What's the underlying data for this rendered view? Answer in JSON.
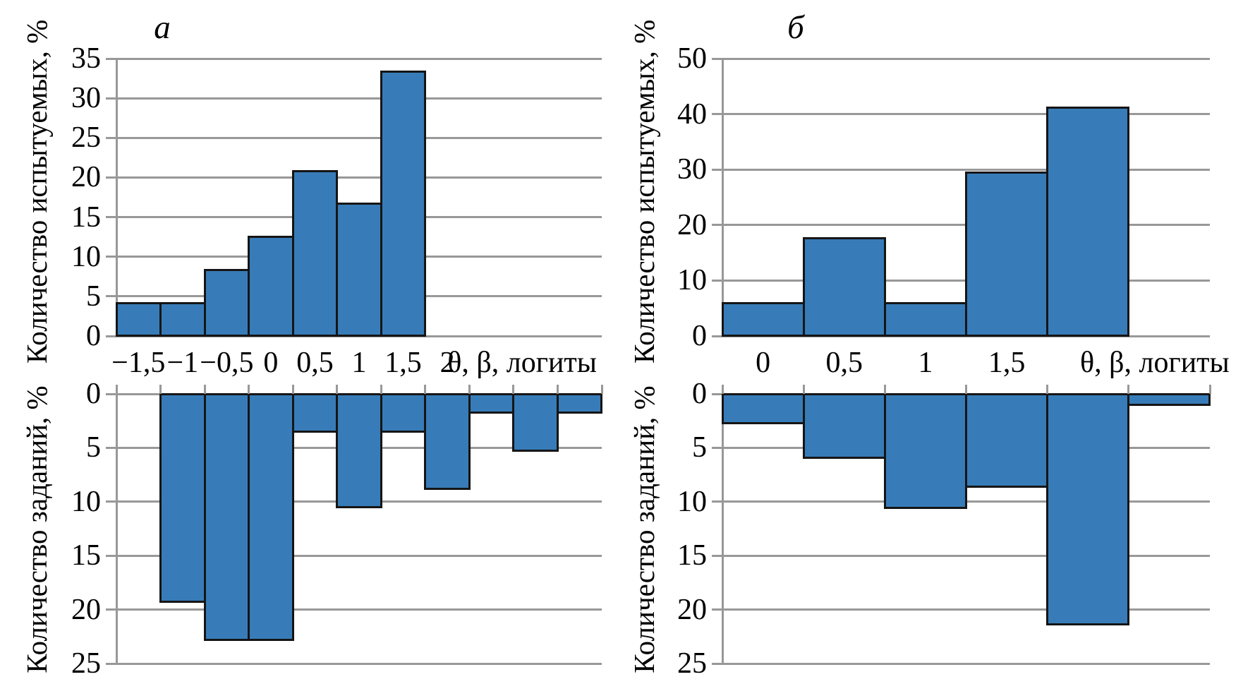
{
  "figure_title": "",
  "chart_data": {
    "type": "bar",
    "description": "Two-panel figure; each panel has an upward histogram of subjects and an inverted (downward) histogram of tasks on a shared logit x-axis",
    "colors": {
      "bar_fill": "#377cb8",
      "bar_edge": "#151515",
      "grid": "#989898",
      "text": "#000000",
      "background": "#ffffff"
    },
    "panels": [
      {
        "panel_label": "а",
        "n_slots": 11,
        "x_tick_labels": [
          "−1,5",
          "−1",
          "−0,5",
          "0",
          "0,5",
          "1",
          "1,5",
          "2"
        ],
        "x_unit_label": "θ, β, логиты",
        "upper": {
          "ylabel": "Количество испытуемых, %",
          "orientation": "up",
          "ylim": [
            0,
            35
          ],
          "ystep": 5,
          "y_tick_labels": [
            "0",
            "5",
            "10",
            "15",
            "20",
            "25",
            "30",
            "35"
          ],
          "start_slot": 0,
          "values": [
            4.17,
            4.17,
            8.33,
            12.5,
            20.83,
            16.67,
            33.33
          ]
        },
        "lower": {
          "ylabel": "Количество заданий, %",
          "orientation": "down",
          "ylim": [
            0,
            25
          ],
          "ystep": 5,
          "y_tick_labels": [
            "0",
            "5",
            "10",
            "15",
            "20",
            "25"
          ],
          "start_slot": 1,
          "values": [
            19.3,
            22.81,
            22.81,
            3.51,
            10.53,
            3.51,
            8.77,
            1.75,
            5.26,
            1.75
          ]
        }
      },
      {
        "panel_label": "б",
        "n_slots": 6,
        "x_tick_labels": [
          "0",
          "0,5",
          "1",
          "1,5"
        ],
        "x_unit_label": "θ, β, логиты",
        "upper": {
          "ylabel": "Количество испытуемых, %",
          "orientation": "up",
          "ylim": [
            0,
            50
          ],
          "ystep": 10,
          "y_tick_labels": [
            "0",
            "10",
            "20",
            "30",
            "40",
            "50"
          ],
          "start_slot": 0,
          "values": [
            5.88,
            17.65,
            5.88,
            29.41,
            41.18
          ]
        },
        "lower": {
          "ylabel": "Количество заданий, %",
          "orientation": "down",
          "ylim": [
            0,
            25
          ],
          "ystep": 5,
          "y_tick_labels": [
            "0",
            "5",
            "10",
            "15",
            "20",
            "25"
          ],
          "start_slot": 0,
          "values": [
            2.7,
            5.9,
            10.6,
            8.6,
            21.4,
            1.0
          ]
        }
      }
    ]
  }
}
